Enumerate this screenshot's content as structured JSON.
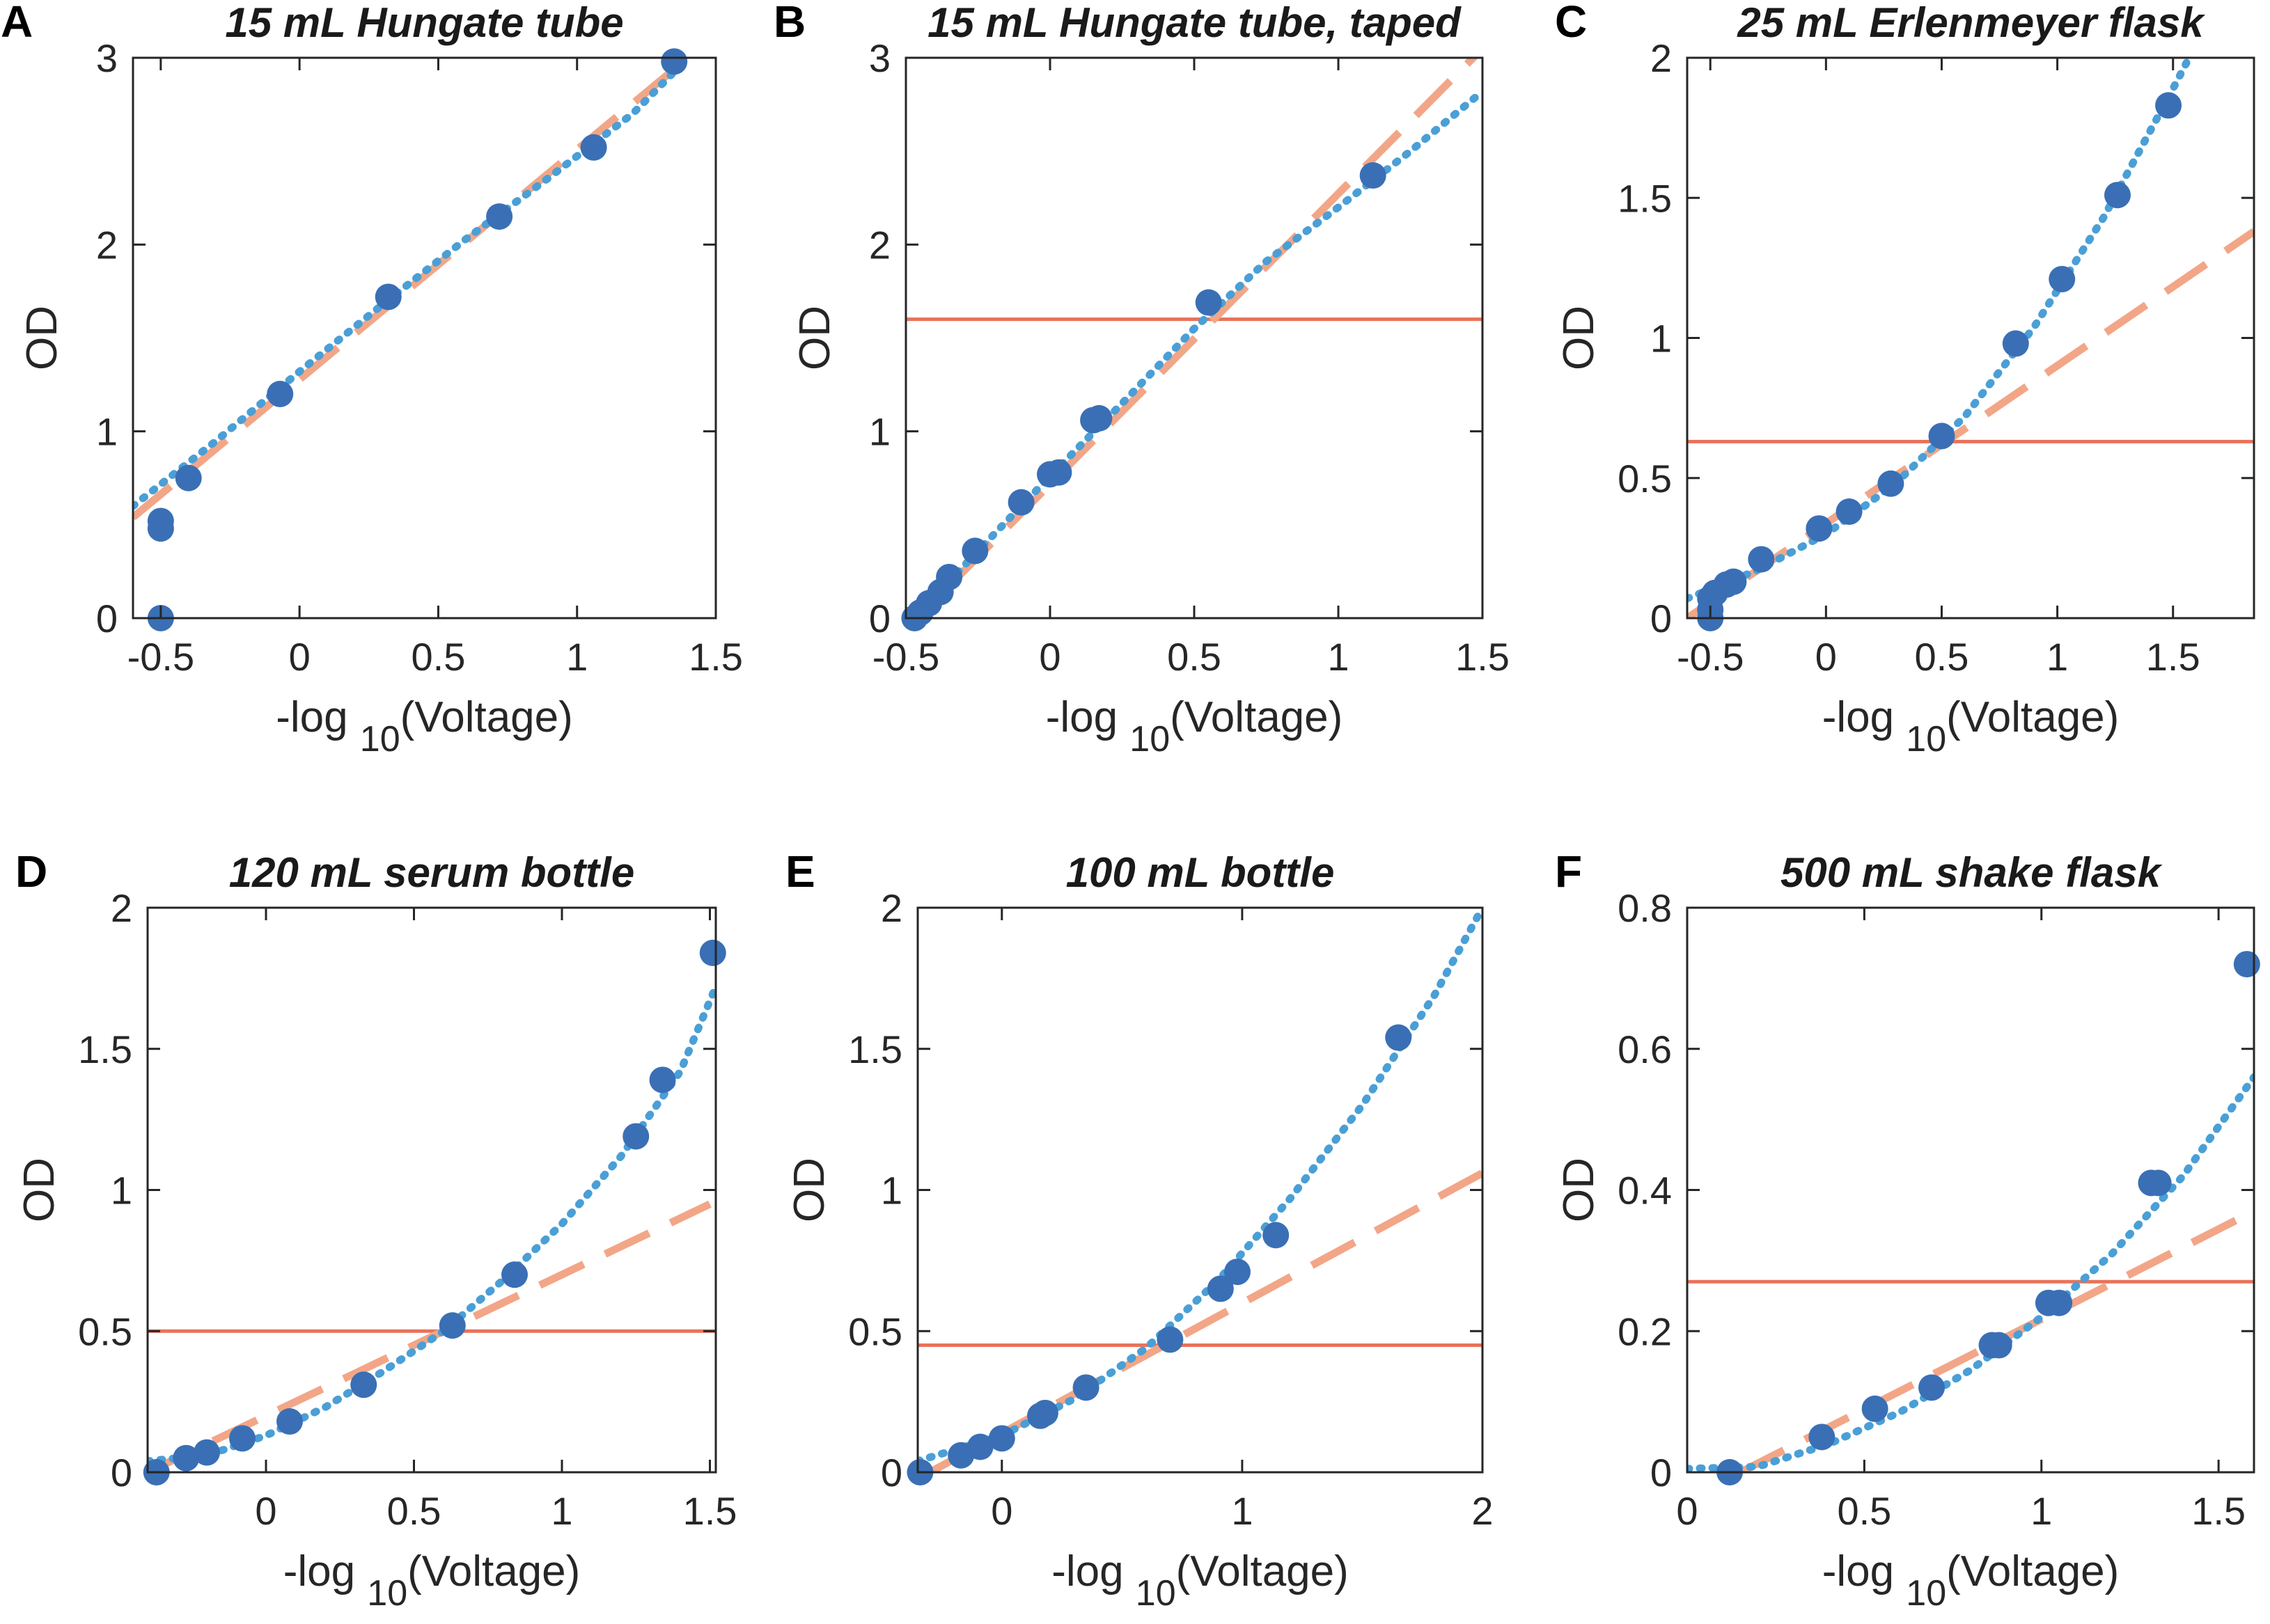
{
  "colors": {
    "points": "#3a6fb5",
    "dotted_fit": "#4a9fd6",
    "dashed_fit": "#f2a687",
    "threshold": "#e8735a",
    "axis": "#262626"
  },
  "chart_data": [
    {
      "panel": "A",
      "type": "scatter",
      "title": "15 mL Hungate tube",
      "xlabel": "-log",
      "xlabel_sub": "10",
      "xlabel_suffix": "(Voltage)",
      "ylabel": "OD",
      "xlim": [
        -0.6,
        1.5
      ],
      "ylim": [
        0,
        3
      ],
      "xticks": [
        -0.5,
        0,
        0.5,
        1,
        1.5
      ],
      "xtick_labels": [
        "-0.5",
        "0",
        "0.5",
        "1",
        "1.5"
      ],
      "yticks": [
        0,
        1,
        2,
        3
      ],
      "ytick_labels": [
        "0",
        "1",
        "2",
        "3"
      ],
      "threshold": null,
      "points": [
        [
          -0.5,
          0.0
        ],
        [
          -0.5,
          0.48
        ],
        [
          -0.5,
          0.52
        ],
        [
          -0.4,
          0.75
        ],
        [
          -0.07,
          1.2
        ],
        [
          0.32,
          1.72
        ],
        [
          0.72,
          2.15
        ],
        [
          1.06,
          2.52
        ],
        [
          1.35,
          2.98
        ]
      ],
      "dashed_line": [
        [
          -0.6,
          0.54
        ],
        [
          1.4,
          3.0
        ]
      ],
      "dotted_curve": [
        [
          -0.6,
          0.6
        ],
        [
          -0.3,
          0.95
        ],
        [
          0,
          1.32
        ],
        [
          0.3,
          1.68
        ],
        [
          0.6,
          2.03
        ],
        [
          0.9,
          2.36
        ],
        [
          1.2,
          2.7
        ],
        [
          1.4,
          3.0
        ]
      ]
    },
    {
      "panel": "B",
      "type": "scatter",
      "title": "15 mL Hungate tube, taped",
      "xlabel": "-log",
      "xlabel_sub": "10",
      "xlabel_suffix": "(Voltage)",
      "ylabel": "OD",
      "xlim": [
        -0.5,
        1.5
      ],
      "ylim": [
        0,
        3
      ],
      "xticks": [
        -0.5,
        0,
        0.5,
        1,
        1.5
      ],
      "xtick_labels": [
        "-0.5",
        "0",
        "0.5",
        "1",
        "1.5"
      ],
      "yticks": [
        0,
        1,
        2,
        3
      ],
      "ytick_labels": [
        "0",
        "1",
        "2",
        "3"
      ],
      "threshold": 1.6,
      "points": [
        [
          -0.47,
          0.0
        ],
        [
          -0.45,
          0.03
        ],
        [
          -0.42,
          0.08
        ],
        [
          -0.38,
          0.14
        ],
        [
          -0.35,
          0.22
        ],
        [
          -0.26,
          0.36
        ],
        [
          -0.1,
          0.62
        ],
        [
          0.0,
          0.77
        ],
        [
          0.03,
          0.78
        ],
        [
          0.15,
          1.06
        ],
        [
          0.17,
          1.07
        ],
        [
          0.55,
          1.69
        ],
        [
          1.12,
          2.37
        ]
      ],
      "dashed_line": [
        [
          -0.5,
          -0.06
        ],
        [
          1.5,
          3.05
        ]
      ],
      "dotted_curve": [
        [
          -0.5,
          -0.05
        ],
        [
          -0.25,
          0.36
        ],
        [
          0,
          0.76
        ],
        [
          0.25,
          1.15
        ],
        [
          0.5,
          1.55
        ],
        [
          0.75,
          1.91
        ],
        [
          1.0,
          2.2
        ],
        [
          1.25,
          2.5
        ],
        [
          1.5,
          2.82
        ]
      ]
    },
    {
      "panel": "C",
      "type": "scatter",
      "title": "25 mL Erlenmeyer flask",
      "xlabel": "-log",
      "xlabel_sub": "10",
      "xlabel_suffix": "(Voltage)",
      "ylabel": "OD",
      "xlim": [
        -0.6,
        1.85
      ],
      "ylim": [
        0,
        2
      ],
      "xticks": [
        -0.5,
        0,
        0.5,
        1,
        1.5
      ],
      "xtick_labels": [
        "-0.5",
        "0",
        "0.5",
        "1",
        "1.5"
      ],
      "yticks": [
        0,
        0.5,
        1,
        1.5,
        2
      ],
      "ytick_labels": [
        "0",
        "0.5",
        "1",
        "1.5",
        "2"
      ],
      "threshold": 0.63,
      "points": [
        [
          -0.5,
          0.0
        ],
        [
          -0.5,
          0.03
        ],
        [
          -0.5,
          0.07
        ],
        [
          -0.48,
          0.09
        ],
        [
          -0.43,
          0.12
        ],
        [
          -0.4,
          0.13
        ],
        [
          -0.28,
          0.21
        ],
        [
          -0.03,
          0.32
        ],
        [
          0.1,
          0.38
        ],
        [
          0.28,
          0.48
        ],
        [
          0.5,
          0.65
        ],
        [
          0.82,
          0.98
        ],
        [
          1.02,
          1.21
        ],
        [
          1.26,
          1.51
        ],
        [
          1.48,
          1.83
        ]
      ],
      "dashed_line": [
        [
          -0.6,
          0.0
        ],
        [
          1.85,
          1.38
        ]
      ],
      "dotted_curve": [
        [
          -0.6,
          0.07
        ],
        [
          -0.3,
          0.17
        ],
        [
          0,
          0.3
        ],
        [
          0.3,
          0.48
        ],
        [
          0.6,
          0.72
        ],
        [
          0.9,
          1.04
        ],
        [
          1.2,
          1.43
        ],
        [
          1.5,
          1.89
        ],
        [
          1.62,
          2.08
        ]
      ]
    },
    {
      "panel": "D",
      "type": "scatter",
      "title": "120 mL serum bottle",
      "xlabel": "-log",
      "xlabel_sub": "10",
      "xlabel_suffix": "(Voltage)",
      "ylabel": "OD",
      "xlim": [
        -0.4,
        1.52
      ],
      "ylim": [
        0,
        2
      ],
      "xticks": [
        0,
        0.5,
        1,
        1.5
      ],
      "xtick_labels": [
        "0",
        "0.5",
        "1",
        "1.5"
      ],
      "yticks": [
        0,
        0.5,
        1,
        1.5,
        2
      ],
      "ytick_labels": [
        "0",
        "0.5",
        "1",
        "1.5",
        "2"
      ],
      "threshold": 0.5,
      "points": [
        [
          -0.37,
          0.0
        ],
        [
          -0.27,
          0.05
        ],
        [
          -0.2,
          0.07
        ],
        [
          -0.08,
          0.12
        ],
        [
          0.08,
          0.18
        ],
        [
          0.33,
          0.31
        ],
        [
          0.63,
          0.52
        ],
        [
          0.84,
          0.7
        ],
        [
          1.25,
          1.19
        ],
        [
          1.34,
          1.39
        ],
        [
          1.51,
          1.84
        ]
      ],
      "dashed_line": [
        [
          -0.4,
          0.0
        ],
        [
          1.5,
          0.95
        ]
      ],
      "dotted_curve": [
        [
          -0.4,
          0.04
        ],
        [
          -0.2,
          0.06
        ],
        [
          0,
          0.13
        ],
        [
          0.2,
          0.23
        ],
        [
          0.4,
          0.36
        ],
        [
          0.6,
          0.5
        ],
        [
          0.8,
          0.68
        ],
        [
          1.0,
          0.88
        ],
        [
          1.2,
          1.12
        ],
        [
          1.4,
          1.42
        ],
        [
          1.52,
          1.72
        ]
      ]
    },
    {
      "panel": "E",
      "type": "scatter",
      "title": "100 mL bottle",
      "xlabel": "-log",
      "xlabel_sub": "10",
      "xlabel_suffix": "(Voltage)",
      "ylabel": "OD",
      "xlim": [
        -0.35,
        2
      ],
      "ylim": [
        0,
        2
      ],
      "xticks": [
        0,
        1,
        2
      ],
      "xtick_labels": [
        "0",
        "1",
        "2"
      ],
      "yticks": [
        0,
        0.5,
        1,
        1.5,
        2
      ],
      "ytick_labels": [
        "0",
        "0.5",
        "1",
        "1.5",
        "2"
      ],
      "threshold": 0.45,
      "points": [
        [
          -0.34,
          0.0
        ],
        [
          -0.17,
          0.06
        ],
        [
          -0.09,
          0.09
        ],
        [
          0.0,
          0.12
        ],
        [
          0.16,
          0.2
        ],
        [
          0.18,
          0.21
        ],
        [
          0.35,
          0.3
        ],
        [
          0.7,
          0.47
        ],
        [
          0.91,
          0.65
        ],
        [
          0.98,
          0.71
        ],
        [
          1.14,
          0.84
        ],
        [
          1.65,
          1.54
        ]
      ],
      "dashed_line": [
        [
          -0.3,
          0.0
        ],
        [
          2.0,
          1.06
        ]
      ],
      "dotted_curve": [
        [
          -0.35,
          0.04
        ],
        [
          0,
          0.13
        ],
        [
          0.3,
          0.26
        ],
        [
          0.6,
          0.44
        ],
        [
          0.9,
          0.68
        ],
        [
          1.2,
          0.97
        ],
        [
          1.5,
          1.3
        ],
        [
          1.8,
          1.69
        ],
        [
          2.0,
          2.0
        ]
      ]
    },
    {
      "panel": "F",
      "type": "scatter",
      "title": "500 mL shake flask",
      "xlabel": "-log",
      "xlabel_sub": "10",
      "xlabel_suffix": "(Voltage)",
      "ylabel": "OD",
      "xlim": [
        0,
        1.6
      ],
      "ylim": [
        0,
        0.8
      ],
      "xticks": [
        0,
        0.5,
        1,
        1.5
      ],
      "xtick_labels": [
        "0",
        "0.5",
        "1",
        "1.5"
      ],
      "yticks": [
        0,
        0.2,
        0.4,
        0.6,
        0.8
      ],
      "ytick_labels": [
        "0",
        "0.2",
        "0.4",
        "0.6",
        "0.8"
      ],
      "threshold": 0.27,
      "points": [
        [
          0.12,
          0.0
        ],
        [
          0.38,
          0.05
        ],
        [
          0.53,
          0.09
        ],
        [
          0.69,
          0.12
        ],
        [
          0.86,
          0.18
        ],
        [
          0.88,
          0.18
        ],
        [
          1.02,
          0.24
        ],
        [
          1.05,
          0.24
        ],
        [
          1.31,
          0.41
        ],
        [
          1.33,
          0.41
        ],
        [
          1.58,
          0.72
        ]
      ],
      "dashed_line": [
        [
          0.15,
          0.0
        ],
        [
          1.6,
          0.37
        ]
      ],
      "dotted_curve": [
        [
          0.0,
          0.005
        ],
        [
          0.2,
          0.008
        ],
        [
          0.4,
          0.04
        ],
        [
          0.6,
          0.085
        ],
        [
          0.8,
          0.145
        ],
        [
          1.0,
          0.22
        ],
        [
          1.2,
          0.31
        ],
        [
          1.4,
          0.42
        ],
        [
          1.6,
          0.56
        ]
      ]
    }
  ]
}
